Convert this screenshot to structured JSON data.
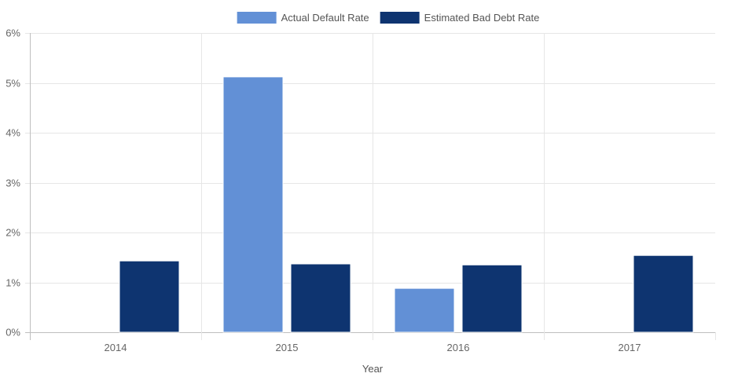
{
  "chart_data": {
    "type": "bar",
    "categories": [
      "2014",
      "2015",
      "2016",
      "2017"
    ],
    "series": [
      {
        "name": "Actual Default Rate",
        "color": "#6290d6",
        "values": [
          null,
          5.12,
          0.88,
          null
        ]
      },
      {
        "name": "Estimated Bad Debt Rate",
        "color": "#0e3470",
        "values": [
          1.43,
          1.37,
          1.35,
          1.54
        ]
      }
    ],
    "title": "",
    "xlabel": "Year",
    "ylabel": "",
    "ylim": [
      0,
      6
    ],
    "y_ticks": [
      0,
      1,
      2,
      3,
      4,
      5,
      6
    ],
    "y_tick_labels": [
      "0%",
      "1%",
      "2%",
      "3%",
      "4%",
      "5%",
      "6%"
    ],
    "grid": true,
    "legend_position": "top-center"
  }
}
